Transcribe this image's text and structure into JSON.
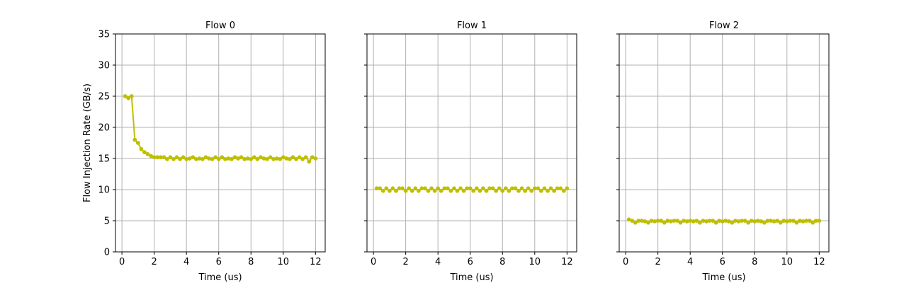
{
  "chart_data": [
    {
      "type": "line",
      "title": "Flow 0",
      "xlabel": "Time (us)",
      "ylabel": "Flow Injection Rate (GB/s)",
      "xlim": [
        -0.4,
        12.6
      ],
      "ylim": [
        0,
        35
      ],
      "xticks": [
        "0",
        "2",
        "4",
        "6",
        "8",
        "10",
        "12"
      ],
      "yticks": [
        "0",
        "5",
        "10",
        "15",
        "20",
        "25",
        "30",
        "35"
      ],
      "grid": true,
      "series": [
        {
          "color": "#bfbf00",
          "x": [
            0.2,
            0.4,
            0.6,
            0.8,
            1.0,
            1.2,
            1.4,
            1.6,
            1.8,
            2.0,
            2.2,
            2.4,
            2.6,
            2.8,
            3.0,
            3.2,
            3.4,
            3.6,
            3.8,
            4.0,
            4.2,
            4.4,
            4.6,
            4.8,
            5.0,
            5.2,
            5.4,
            5.6,
            5.8,
            6.0,
            6.2,
            6.4,
            6.6,
            6.8,
            7.0,
            7.2,
            7.4,
            7.6,
            7.8,
            8.0,
            8.2,
            8.4,
            8.6,
            8.8,
            9.0,
            9.2,
            9.4,
            9.6,
            9.8,
            10.0,
            10.2,
            10.4,
            10.6,
            10.8,
            11.0,
            11.2,
            11.4,
            11.6,
            11.8,
            12.0
          ],
          "y": [
            25.0,
            24.7,
            25.0,
            18.0,
            17.5,
            16.5,
            16.0,
            15.7,
            15.4,
            15.2,
            15.2,
            15.2,
            15.2,
            14.9,
            15.2,
            14.9,
            15.2,
            14.9,
            15.2,
            14.9,
            15.0,
            15.2,
            14.9,
            15.0,
            14.9,
            15.2,
            15.0,
            14.9,
            15.2,
            14.9,
            15.2,
            14.9,
            15.0,
            14.9,
            15.2,
            15.0,
            15.2,
            14.9,
            15.0,
            14.9,
            15.2,
            14.9,
            15.2,
            15.0,
            14.9,
            15.2,
            14.9,
            15.0,
            14.9,
            15.2,
            15.0,
            14.9,
            15.2,
            14.9,
            15.2,
            14.9,
            15.2,
            14.5,
            15.2,
            15.0
          ]
        }
      ]
    },
    {
      "type": "line",
      "title": "Flow 1",
      "xlabel": "Time (us)",
      "ylabel": "",
      "xlim": [
        -0.4,
        12.6
      ],
      "ylim": [
        0,
        35
      ],
      "xticks": [
        "0",
        "2",
        "4",
        "6",
        "8",
        "10",
        "12"
      ],
      "yticks": [],
      "grid": true,
      "series": [
        {
          "color": "#bfbf00",
          "x": [
            0.2,
            0.4,
            0.6,
            0.8,
            1.0,
            1.2,
            1.4,
            1.6,
            1.8,
            2.0,
            2.2,
            2.4,
            2.6,
            2.8,
            3.0,
            3.2,
            3.4,
            3.6,
            3.8,
            4.0,
            4.2,
            4.4,
            4.6,
            4.8,
            5.0,
            5.2,
            5.4,
            5.6,
            5.8,
            6.0,
            6.2,
            6.4,
            6.6,
            6.8,
            7.0,
            7.2,
            7.4,
            7.6,
            7.8,
            8.0,
            8.2,
            8.4,
            8.6,
            8.8,
            9.0,
            9.2,
            9.4,
            9.6,
            9.8,
            10.0,
            10.2,
            10.4,
            10.6,
            10.8,
            11.0,
            11.2,
            11.4,
            11.6,
            11.8,
            12.0
          ],
          "y": [
            10.2,
            10.2,
            9.8,
            10.2,
            9.8,
            10.2,
            9.8,
            10.2,
            10.2,
            9.8,
            10.2,
            9.8,
            10.2,
            9.8,
            10.2,
            10.2,
            9.8,
            10.2,
            9.8,
            10.2,
            9.8,
            10.2,
            10.2,
            9.8,
            10.2,
            9.8,
            10.2,
            9.8,
            10.2,
            10.2,
            9.8,
            10.2,
            9.8,
            10.2,
            9.8,
            10.2,
            10.2,
            9.8,
            10.2,
            9.8,
            10.2,
            9.8,
            10.2,
            10.2,
            9.8,
            10.2,
            9.8,
            10.2,
            9.8,
            10.2,
            10.2,
            9.8,
            10.2,
            9.8,
            10.2,
            9.8,
            10.2,
            10.2,
            9.8,
            10.2
          ]
        }
      ]
    },
    {
      "type": "line",
      "title": "Flow 2",
      "xlabel": "Time (us)",
      "ylabel": "",
      "xlim": [
        -0.4,
        12.6
      ],
      "ylim": [
        0,
        35
      ],
      "xticks": [
        "0",
        "2",
        "4",
        "6",
        "8",
        "10",
        "12"
      ],
      "yticks": [],
      "grid": true,
      "series": [
        {
          "color": "#bfbf00",
          "x": [
            0.2,
            0.4,
            0.6,
            0.8,
            1.0,
            1.2,
            1.4,
            1.6,
            1.8,
            2.0,
            2.2,
            2.4,
            2.6,
            2.8,
            3.0,
            3.2,
            3.4,
            3.6,
            3.8,
            4.0,
            4.2,
            4.4,
            4.6,
            4.8,
            5.0,
            5.2,
            5.4,
            5.6,
            5.8,
            6.0,
            6.2,
            6.4,
            6.6,
            6.8,
            7.0,
            7.2,
            7.4,
            7.6,
            7.8,
            8.0,
            8.2,
            8.4,
            8.6,
            8.8,
            9.0,
            9.2,
            9.4,
            9.6,
            9.8,
            10.0,
            10.2,
            10.4,
            10.6,
            10.8,
            11.0,
            11.2,
            11.4,
            11.6,
            11.8,
            12.0
          ],
          "y": [
            5.2,
            5.0,
            4.7,
            5.0,
            5.0,
            4.9,
            4.7,
            5.0,
            4.9,
            5.0,
            5.0,
            4.7,
            5.0,
            4.9,
            5.0,
            5.0,
            4.7,
            5.0,
            4.9,
            5.0,
            4.9,
            5.0,
            4.7,
            5.0,
            4.9,
            5.0,
            5.0,
            4.7,
            5.0,
            4.9,
            5.0,
            4.9,
            4.7,
            5.0,
            4.9,
            5.0,
            5.0,
            4.7,
            5.0,
            4.9,
            5.0,
            4.9,
            4.7,
            5.0,
            5.0,
            4.9,
            5.0,
            4.7,
            5.0,
            4.9,
            5.0,
            5.0,
            4.7,
            5.0,
            4.9,
            5.0,
            5.0,
            4.7,
            5.0,
            5.0
          ]
        }
      ]
    }
  ]
}
